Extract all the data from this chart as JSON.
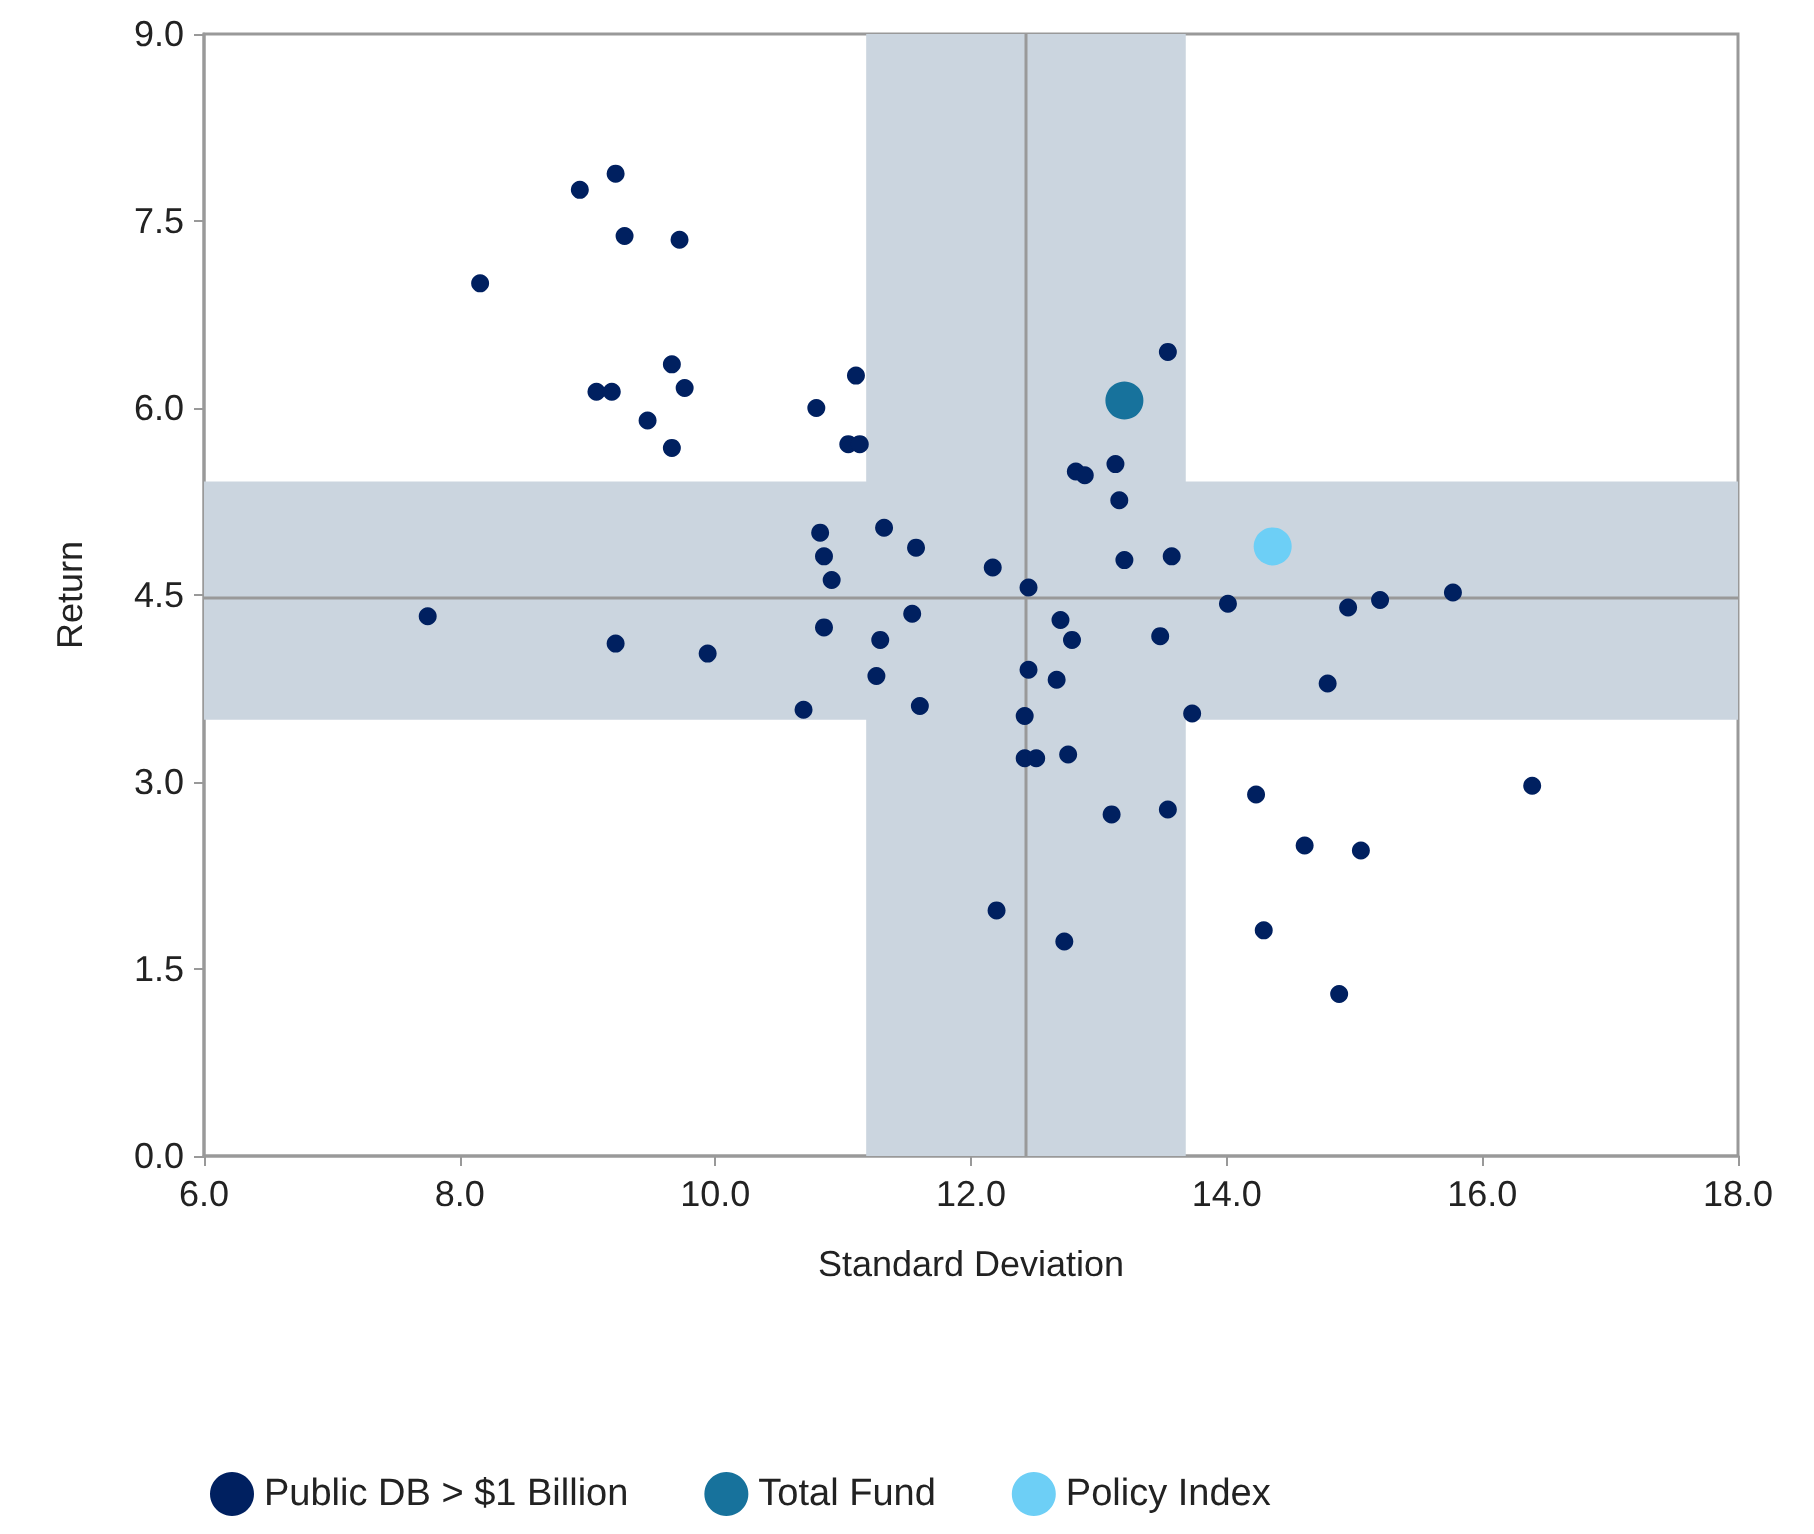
{
  "chart_data": {
    "type": "scatter",
    "xlabel": "Standard Deviation",
    "ylabel": "Return",
    "xlim": [
      6,
      18
    ],
    "xticks": [
      {
        "value": 6,
        "label": "6.0"
      },
      {
        "value": 8,
        "label": "8.0"
      },
      {
        "value": 10,
        "label": "10.0"
      },
      {
        "value": 12,
        "label": "12.0"
      },
      {
        "value": 14,
        "label": "14.0"
      },
      {
        "value": 16,
        "label": "16.0"
      },
      {
        "value": 18,
        "label": "18.0"
      }
    ],
    "ylim": [
      0,
      9
    ],
    "yticks": [
      {
        "value": 0,
        "label": "0.0"
      },
      {
        "value": 1.5,
        "label": "1.5"
      },
      {
        "value": 3,
        "label": "3.0"
      },
      {
        "value": 4.5,
        "label": "4.5"
      },
      {
        "value": 6,
        "label": "6.0"
      },
      {
        "value": 7.5,
        "label": "7.5"
      },
      {
        "value": 9,
        "label": "9.0"
      }
    ],
    "grid": false,
    "legend": "bottom left",
    "marker": "circle",
    "bands": [
      {
        "axis": "x",
        "from": 11.18,
        "to": 13.68,
        "color": "#cbd5df"
      },
      {
        "axis": "y",
        "from": 3.5,
        "to": 5.41,
        "color": "#cbd5df"
      }
    ],
    "ref_lines": [
      {
        "axis": "x",
        "value": 12.42,
        "color": "#999999"
      },
      {
        "axis": "y",
        "value": 4.48,
        "color": "#999999"
      }
    ],
    "series": [
      {
        "name": "Public DB > $1 Billion",
        "color": "#002060",
        "x": [
          8.16,
          8.94,
          9.22,
          9.29,
          9.72,
          9.07,
          9.19,
          9.66,
          9.76,
          9.47,
          9.66,
          10.79,
          11.1,
          11.04,
          11.13,
          10.82,
          10.85,
          10.91,
          11.32,
          11.57,
          12.17,
          12.45,
          7.75,
          9.22,
          9.94,
          10.85,
          11.29,
          11.54,
          11.26,
          11.6,
          10.69,
          12.45,
          12.7,
          12.79,
          12.67,
          12.42,
          12.42,
          12.51,
          12.76,
          13.1,
          13.54,
          12.2,
          12.73,
          13.54,
          12.82,
          12.89,
          13.13,
          13.16,
          13.2,
          13.57,
          13.48,
          13.73,
          14.01,
          14.95,
          15.2,
          15.77,
          14.79,
          14.23,
          14.61,
          15.05,
          14.29,
          14.88,
          16.39
        ],
        "values": [
          7.0,
          7.75,
          7.88,
          7.38,
          7.35,
          6.13,
          6.13,
          6.35,
          6.16,
          5.9,
          5.68,
          6.0,
          6.26,
          5.71,
          5.71,
          5.0,
          4.81,
          4.62,
          5.04,
          4.88,
          4.72,
          4.56,
          4.33,
          4.11,
          4.03,
          4.24,
          4.14,
          4.35,
          3.85,
          3.61,
          3.58,
          3.9,
          4.3,
          4.14,
          3.82,
          3.53,
          3.19,
          3.19,
          3.22,
          2.74,
          2.78,
          1.97,
          1.72,
          6.45,
          5.49,
          5.46,
          5.55,
          5.26,
          4.78,
          4.81,
          4.17,
          3.55,
          4.43,
          4.4,
          4.46,
          4.52,
          3.79,
          2.9,
          2.49,
          2.45,
          1.81,
          1.3,
          2.97
        ]
      },
      {
        "name": "Total Fund",
        "color": "#17729c",
        "x": [
          13.2
        ],
        "values": [
          6.06
        ]
      },
      {
        "name": "Policy Index",
        "color": "#6dcff6",
        "x": [
          14.36
        ],
        "values": [
          4.89
        ]
      }
    ]
  }
}
